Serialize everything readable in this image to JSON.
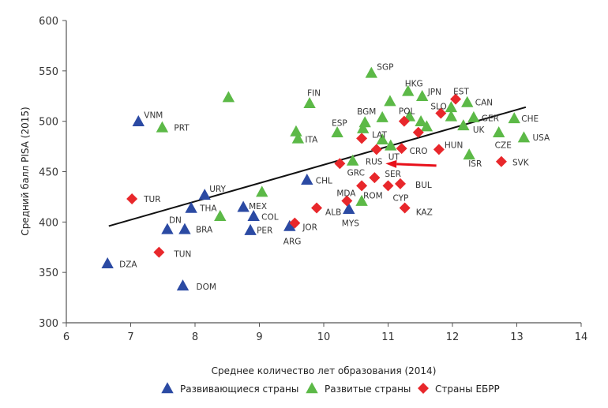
{
  "chart_data": {
    "type": "scatter",
    "xlabel": "Среднее количество лет образования (2014)",
    "ylabel": "Средний балл PISA (2015)",
    "xlim": [
      6,
      14
    ],
    "ylim": [
      300,
      600
    ],
    "xticks": [
      "6",
      "7",
      "8",
      "9",
      "10",
      "11",
      "12",
      "13",
      "14"
    ],
    "yticks": [
      "300",
      "350",
      "400",
      "450",
      "500",
      "550",
      "600"
    ],
    "grid": false,
    "legend_placement": "bottom",
    "colors": {
      "developing": "#2b4aa3",
      "developed": "#5cb947",
      "ebrd": "#e8272b",
      "trend": "#111111",
      "arrow": "#e8101a"
    },
    "trendline": [
      [
        6.66,
        396
      ],
      [
        13.14,
        514
      ]
    ],
    "arrow": {
      "from": [
        11.75,
        456
      ],
      "to": [
        10.96,
        458
      ]
    },
    "series": [
      {
        "name": "Развивающиеся страны",
        "key": "developing",
        "marker": "triangle",
        "points": [
          {
            "label": "VNM",
            "x": 7.12,
            "y": 500
          },
          {
            "label": "URY",
            "x": 8.15,
            "y": 427
          },
          {
            "label": "THA",
            "x": 7.94,
            "y": 414
          },
          {
            "label": "DN",
            "x": 7.57,
            "y": 393
          },
          {
            "label": "BRA",
            "x": 7.84,
            "y": 393
          },
          {
            "label": "MEX",
            "x": 8.75,
            "y": 415
          },
          {
            "label": "COL",
            "x": 8.91,
            "y": 406
          },
          {
            "label": "PER",
            "x": 8.86,
            "y": 392
          },
          {
            "label": "ARG",
            "x": 9.47,
            "y": 396
          },
          {
            "label": "CHL",
            "x": 9.74,
            "y": 442
          },
          {
            "label": "DZA",
            "x": 6.64,
            "y": 359
          },
          {
            "label": "DOM",
            "x": 7.81,
            "y": 337
          },
          {
            "label": "MYS",
            "x": 10.39,
            "y": 413
          }
        ]
      },
      {
        "name": "Развитые страны",
        "key": "developed",
        "marker": "triangle",
        "points": [
          {
            "label": "",
            "x": 8.52,
            "y": 524
          },
          {
            "label": "PRT",
            "x": 7.49,
            "y": 494
          },
          {
            "label": "FIN",
            "x": 9.78,
            "y": 518
          },
          {
            "label": "",
            "x": 9.57,
            "y": 490
          },
          {
            "label": "ITA",
            "x": 9.6,
            "y": 483
          },
          {
            "label": "",
            "x": 9.04,
            "y": 430
          },
          {
            "label": "",
            "x": 8.39,
            "y": 406
          },
          {
            "label": "SGP",
            "x": 10.74,
            "y": 548
          },
          {
            "label": "ESP",
            "x": 10.21,
            "y": 489
          },
          {
            "label": "BGM",
            "x": 10.64,
            "y": 499
          },
          {
            "label": "",
            "x": 10.61,
            "y": 493
          },
          {
            "label": "",
            "x": 10.91,
            "y": 504
          },
          {
            "label": "",
            "x": 11.03,
            "y": 520
          },
          {
            "label": "HKG",
            "x": 11.31,
            "y": 530
          },
          {
            "label": "JPN",
            "x": 11.53,
            "y": 525
          },
          {
            "label": "",
            "x": 11.98,
            "y": 514
          },
          {
            "label": "",
            "x": 11.98,
            "y": 505
          },
          {
            "label": "CAN",
            "x": 12.23,
            "y": 519
          },
          {
            "label": "",
            "x": 11.33,
            "y": 505
          },
          {
            "label": "",
            "x": 11.51,
            "y": 500
          },
          {
            "label": "",
            "x": 11.6,
            "y": 495
          },
          {
            "label": "GER",
            "x": 12.33,
            "y": 504
          },
          {
            "label": "CHE",
            "x": 12.96,
            "y": 503
          },
          {
            "label": "UK",
            "x": 12.17,
            "y": 496
          },
          {
            "label": "CZE",
            "x": 12.72,
            "y": 489
          },
          {
            "label": "USA",
            "x": 13.11,
            "y": 484
          },
          {
            "label": "ISR",
            "x": 12.26,
            "y": 467
          },
          {
            "label": "",
            "x": 10.91,
            "y": 482
          },
          {
            "label": "UT",
            "x": 11.04,
            "y": 476
          },
          {
            "label": "GRC",
            "x": 10.45,
            "y": 461
          },
          {
            "label": "ROM",
            "x": 10.59,
            "y": 421
          }
        ]
      },
      {
        "name": "Страны ЕБРР",
        "key": "ebrd",
        "marker": "diamond",
        "points": [
          {
            "label": "TUR",
            "x": 7.02,
            "y": 423
          },
          {
            "label": "TUN",
            "x": 7.44,
            "y": 370
          },
          {
            "label": "JOR",
            "x": 9.55,
            "y": 399
          },
          {
            "label": "ALB",
            "x": 9.89,
            "y": 414
          },
          {
            "label": "EST",
            "x": 12.05,
            "y": 522
          },
          {
            "label": "SLO",
            "x": 11.82,
            "y": 508
          },
          {
            "label": "POL",
            "x": 11.25,
            "y": 500
          },
          {
            "label": "",
            "x": 11.47,
            "y": 489
          },
          {
            "label": "LAT",
            "x": 10.59,
            "y": 483
          },
          {
            "label": "RUS",
            "x": 10.82,
            "y": 472
          },
          {
            "label": "CRO",
            "x": 11.21,
            "y": 473
          },
          {
            "label": "HUN",
            "x": 11.79,
            "y": 472
          },
          {
            "label": "SVK",
            "x": 12.76,
            "y": 460
          },
          {
            "label": "",
            "x": 10.25,
            "y": 458
          },
          {
            "label": "SER",
            "x": 10.79,
            "y": 444
          },
          {
            "label": "",
            "x": 10.59,
            "y": 436
          },
          {
            "label": "CYP",
            "x": 11.0,
            "y": 436
          },
          {
            "label": "BUL",
            "x": 11.19,
            "y": 438
          },
          {
            "label": "MDA",
            "x": 10.36,
            "y": 421
          },
          {
            "label": "KAZ",
            "x": 11.26,
            "y": 414
          }
        ]
      }
    ]
  }
}
